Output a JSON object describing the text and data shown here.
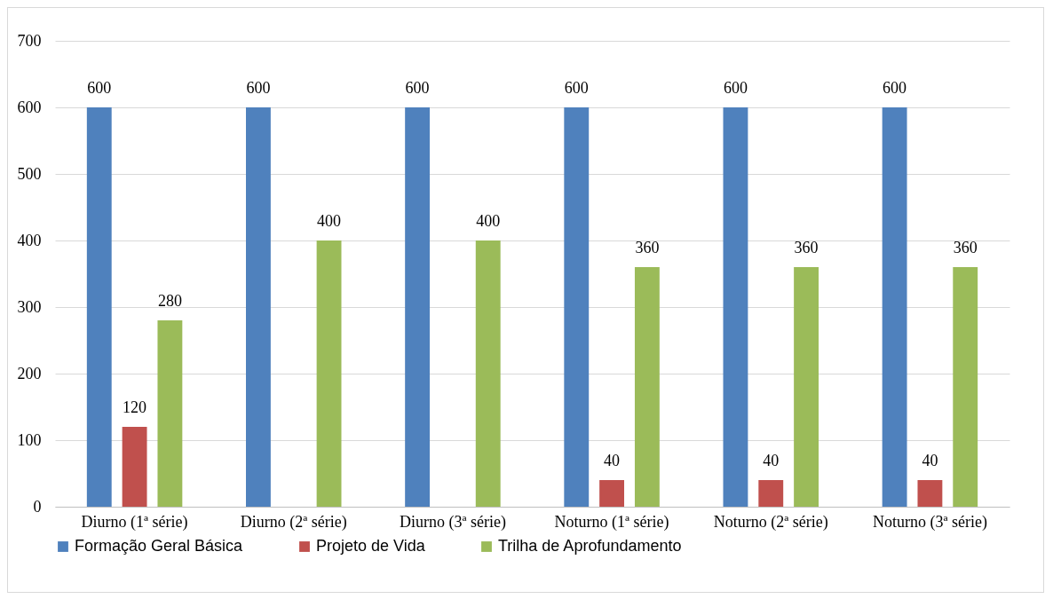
{
  "chart_data": {
    "type": "bar",
    "categories": [
      "Diurno (1ª série)",
      "Diurno (2ª série)",
      "Diurno (3ª série)",
      "Noturno (1ª série)",
      "Noturno (2ª série)",
      "Noturno (3ª série)"
    ],
    "series": [
      {
        "name": "Formação Geral Básica",
        "color": "#4f81bd",
        "values": [
          600,
          600,
          600,
          600,
          600,
          600
        ]
      },
      {
        "name": "Projeto de Vida",
        "color": "#c0504d",
        "values": [
          120,
          null,
          null,
          40,
          40,
          40
        ]
      },
      {
        "name": "Trilha de Aprofundamento",
        "color": "#9bbb59",
        "values": [
          280,
          400,
          400,
          360,
          360,
          360
        ]
      }
    ],
    "ylim": [
      0,
      700
    ],
    "yticks": [
      0,
      100,
      200,
      300,
      400,
      500,
      600,
      700
    ],
    "grid": "y",
    "legend": "bottom",
    "data_labels": true
  }
}
